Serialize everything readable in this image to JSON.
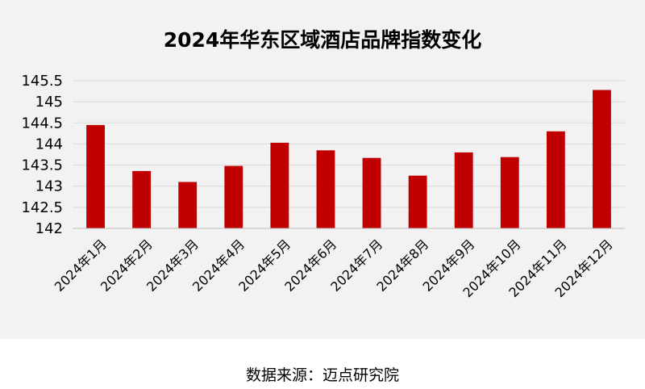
{
  "chart_data": {
    "type": "bar",
    "title": "2024年华东区域酒店品牌指数变化",
    "xlabel": "",
    "ylabel": "",
    "categories": [
      "2024年1月",
      "2024年2月",
      "2024年3月",
      "2024年4月",
      "2024年5月",
      "2024年6月",
      "2024年7月",
      "2024年8月",
      "2024年9月",
      "2024年10月",
      "2024年11月",
      "2024年12月"
    ],
    "values": [
      144.45,
      143.36,
      143.1,
      143.48,
      144.03,
      143.85,
      143.67,
      143.25,
      143.8,
      143.69,
      144.3,
      145.28
    ],
    "ylim": [
      142,
      145.5
    ],
    "yticks": [
      "145.5",
      "145",
      "144.5",
      "144",
      "143.5",
      "143",
      "142.5",
      "142"
    ],
    "bar_color": "#c00000",
    "grid": true,
    "legend": "none"
  },
  "source_note": "数据来源：迈点研究院"
}
